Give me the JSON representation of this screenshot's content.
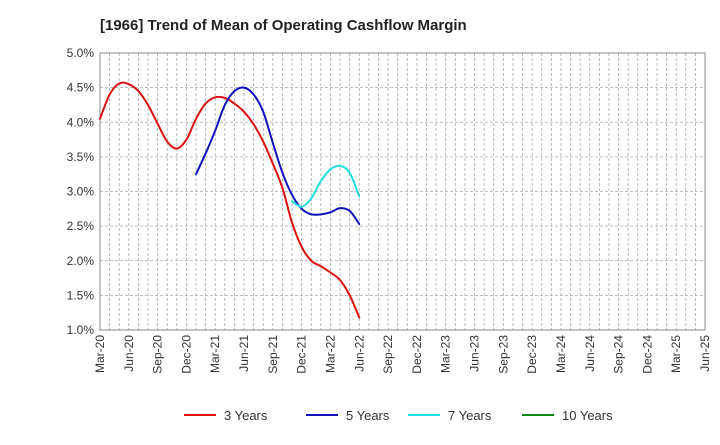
{
  "chart_data": {
    "type": "line",
    "title": "[1966]  Trend of Mean of Operating Cashflow Margin",
    "xlabel": "",
    "ylabel": "",
    "ylim": [
      1.0,
      5.0
    ],
    "x_tick_labels": [
      "Mar-20",
      "Jun-20",
      "Sep-20",
      "Dec-20",
      "Mar-21",
      "Jun-21",
      "Sep-21",
      "Dec-21",
      "Mar-22",
      "Jun-22",
      "Sep-22",
      "Dec-22",
      "Mar-23",
      "Jun-23",
      "Sep-23",
      "Dec-23",
      "Mar-24",
      "Jun-24",
      "Sep-24",
      "Dec-24",
      "Mar-25",
      "Jun-25"
    ],
    "y_tick_labels": [
      "5.0%",
      "4.5%",
      "4.0%",
      "3.5%",
      "3.0%",
      "2.5%",
      "2.0%",
      "1.5%",
      "1.0%"
    ],
    "y_ticks": [
      5.0,
      4.5,
      4.0,
      3.5,
      3.0,
      2.5,
      2.0,
      1.5,
      1.0
    ],
    "grid": true,
    "legend_position": "bottom",
    "series": [
      {
        "name": "3 Years",
        "color": "#dd1111",
        "points": [
          [
            0,
            4.05
          ],
          [
            1,
            4.4
          ],
          [
            2,
            4.56
          ],
          [
            3,
            4.55
          ],
          [
            4,
            4.45
          ],
          [
            5,
            4.25
          ],
          [
            6,
            3.98
          ],
          [
            7,
            3.72
          ],
          [
            8,
            3.62
          ],
          [
            9,
            3.75
          ],
          [
            10,
            4.05
          ],
          [
            11,
            4.27
          ],
          [
            12,
            4.36
          ],
          [
            13,
            4.35
          ],
          [
            14,
            4.27
          ],
          [
            15,
            4.15
          ],
          [
            16,
            3.97
          ],
          [
            17,
            3.72
          ],
          [
            18,
            3.4
          ],
          [
            19,
            3.05
          ],
          [
            20,
            2.55
          ],
          [
            21,
            2.2
          ],
          [
            22,
            2.0
          ],
          [
            23,
            1.92
          ],
          [
            24,
            1.83
          ],
          [
            25,
            1.72
          ],
          [
            26,
            1.5
          ],
          [
            27,
            1.18
          ]
        ]
      },
      {
        "name": "5 Years",
        "color": "#1111bb",
        "points": [
          [
            10,
            3.25
          ],
          [
            11,
            3.55
          ],
          [
            12,
            3.88
          ],
          [
            13,
            4.25
          ],
          [
            14,
            4.45
          ],
          [
            15,
            4.5
          ],
          [
            16,
            4.4
          ],
          [
            17,
            4.15
          ],
          [
            18,
            3.7
          ],
          [
            19,
            3.27
          ],
          [
            20,
            2.95
          ],
          [
            21,
            2.75
          ],
          [
            22,
            2.67
          ],
          [
            23,
            2.67
          ],
          [
            24,
            2.7
          ],
          [
            25,
            2.76
          ],
          [
            26,
            2.72
          ],
          [
            27,
            2.53
          ]
        ]
      },
      {
        "name": "7 Years",
        "color": "#22dddd",
        "points": [
          [
            20,
            2.86
          ],
          [
            21,
            2.78
          ],
          [
            22,
            2.9
          ],
          [
            23,
            3.15
          ],
          [
            24,
            3.32
          ],
          [
            25,
            3.37
          ],
          [
            26,
            3.27
          ],
          [
            27,
            2.93
          ]
        ]
      },
      {
        "name": "10 Years",
        "color": "#118811",
        "points": []
      }
    ]
  }
}
